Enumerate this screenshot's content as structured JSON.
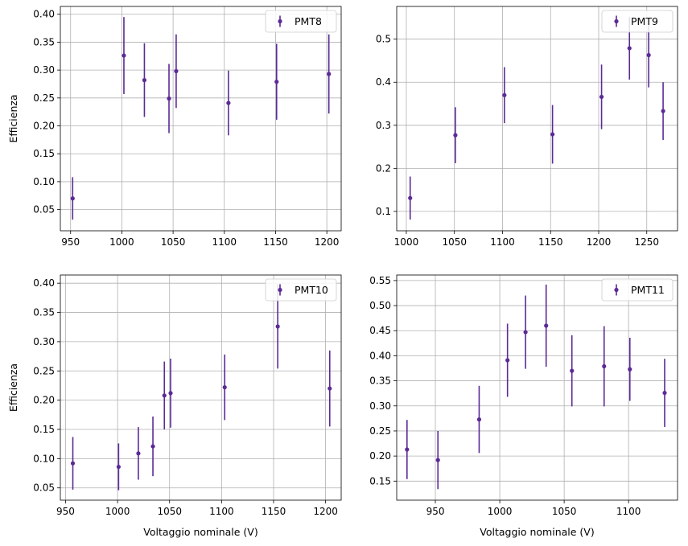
{
  "chart_data": [
    {
      "type": "scatter",
      "series_name": "PMT8",
      "ylabel": "Efficienza",
      "xlabel": "",
      "x": [
        952,
        1002,
        1022,
        1046,
        1053,
        1104,
        1151,
        1202
      ],
      "y": [
        0.07,
        0.326,
        0.282,
        0.249,
        0.298,
        0.241,
        0.279,
        0.293
      ],
      "yerr": [
        0.038,
        0.069,
        0.066,
        0.062,
        0.066,
        0.058,
        0.068,
        0.071
      ],
      "xlim": [
        940,
        1214
      ],
      "ylim": [
        0.012,
        0.414
      ],
      "xticks": [
        "950",
        "1000",
        "1050",
        "1100",
        "1150",
        "1200"
      ],
      "yticks": [
        "0.05",
        "0.10",
        "0.15",
        "0.20",
        "0.25",
        "0.30",
        "0.35",
        "0.40"
      ],
      "grid": true,
      "legend": "top-right",
      "color": "#5b2a96"
    },
    {
      "type": "scatter",
      "series_name": "PMT9",
      "ylabel": "",
      "xlabel": "",
      "x": [
        1004,
        1051,
        1102,
        1152,
        1203,
        1232,
        1252,
        1267
      ],
      "y": [
        0.131,
        0.277,
        0.37,
        0.279,
        0.366,
        0.479,
        0.463,
        0.333
      ],
      "yerr": [
        0.05,
        0.065,
        0.065,
        0.068,
        0.075,
        0.073,
        0.075,
        0.067
      ],
      "xlim": [
        990,
        1282
      ],
      "ylim": [
        0.055,
        0.576
      ],
      "xticks": [
        "1000",
        "1050",
        "1100",
        "1150",
        "1200",
        "1250"
      ],
      "yticks": [
        "0.1",
        "0.2",
        "0.3",
        "0.4",
        "0.5"
      ],
      "grid": true,
      "legend": "top-right",
      "color": "#5b2a96"
    },
    {
      "type": "scatter",
      "series_name": "PMT10",
      "ylabel": "Efficienza",
      "xlabel": "Voltaggio nominale (V)",
      "x": [
        957,
        1001,
        1020,
        1034,
        1045,
        1051,
        1103,
        1154,
        1204
      ],
      "y": [
        0.092,
        0.086,
        0.109,
        0.121,
        0.208,
        0.212,
        0.222,
        0.326,
        0.22
      ],
      "yerr": [
        0.045,
        0.04,
        0.045,
        0.051,
        0.058,
        0.059,
        0.056,
        0.072,
        0.065
      ],
      "xlim": [
        945,
        1215
      ],
      "ylim": [
        0.029,
        0.414
      ],
      "xticks": [
        "950",
        "1000",
        "1050",
        "1100",
        "1150",
        "1200"
      ],
      "yticks": [
        "0.05",
        "0.10",
        "0.15",
        "0.20",
        "0.25",
        "0.30",
        "0.35",
        "0.40"
      ],
      "grid": true,
      "legend": "top-right",
      "color": "#5b2a96"
    },
    {
      "type": "scatter",
      "series_name": "PMT11",
      "ylabel": "",
      "xlabel": "Voltaggio nominale (V)",
      "x": [
        928,
        952,
        984,
        1006,
        1020,
        1036,
        1056,
        1081,
        1101,
        1128
      ],
      "y": [
        0.213,
        0.192,
        0.273,
        0.391,
        0.447,
        0.46,
        0.37,
        0.379,
        0.373,
        0.326
      ],
      "yerr": [
        0.059,
        0.058,
        0.067,
        0.073,
        0.073,
        0.082,
        0.071,
        0.08,
        0.063,
        0.068
      ],
      "xlim": [
        920,
        1138
      ],
      "ylim": [
        0.112,
        0.561
      ],
      "xticks": [
        "950",
        "1000",
        "1050",
        "1100"
      ],
      "yticks": [
        "0.15",
        "0.20",
        "0.25",
        "0.30",
        "0.35",
        "0.40",
        "0.45",
        "0.50",
        "0.55"
      ],
      "grid": true,
      "legend": "top-right",
      "color": "#5b2a96"
    }
  ]
}
